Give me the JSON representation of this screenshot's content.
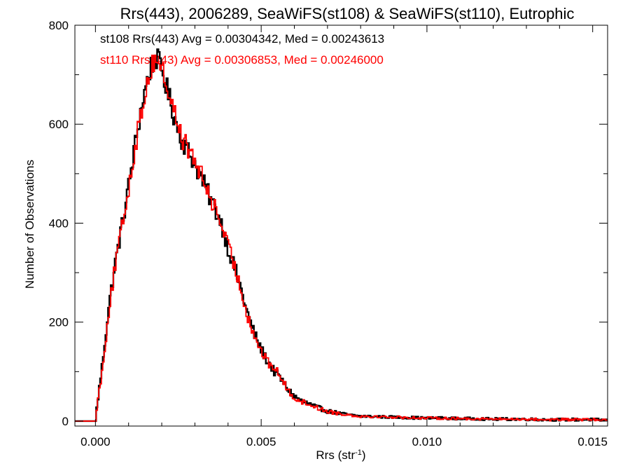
{
  "chart_data": {
    "type": "line",
    "title": "Rrs(443), 2006289, SeaWiFS(st108) & SeaWiFS(st110), Eutrophic",
    "xlabel": "Rrs (str",
    "xlabel_sup": "-1",
    "xlabel_close": ")",
    "ylabel": "Number of Observations",
    "xlim": [
      -0.00062,
      0.01545
    ],
    "ylim": [
      -10,
      800
    ],
    "x_ticks": [
      0.0,
      0.005,
      0.01,
      0.015
    ],
    "x_tick_labels": [
      "0.000",
      "0.005",
      "0.010",
      "0.015"
    ],
    "y_ticks": [
      0,
      200,
      400,
      600,
      800
    ],
    "y_tick_labels": [
      "0",
      "200",
      "400",
      "600",
      "800"
    ],
    "grid": false,
    "annotations": [
      {
        "text": "st108 Rrs(443) Avg = 0.00304342, Med = 0.00243613",
        "color": "#000000"
      },
      {
        "text": "st110 Rrs(443) Avg = 0.00306853, Med = 0.00246000",
        "color": "#ff0000"
      }
    ],
    "series": [
      {
        "color": "#000000",
        "x": [
          -0.0006,
          0.0,
          0.0002,
          0.0004,
          0.0006,
          0.0008,
          0.001,
          0.0012,
          0.0014,
          0.0016,
          0.0018,
          0.002,
          0.0022,
          0.0024,
          0.0026,
          0.0028,
          0.003,
          0.0032,
          0.0034,
          0.0036,
          0.0038,
          0.004,
          0.0042,
          0.0044,
          0.0046,
          0.0048,
          0.005,
          0.0052,
          0.0054,
          0.0056,
          0.0058,
          0.006,
          0.0062,
          0.0064,
          0.0066,
          0.0068,
          0.007,
          0.0072,
          0.0074,
          0.0076,
          0.0078,
          0.008,
          0.0085,
          0.009,
          0.0095,
          0.01,
          0.0105,
          0.011,
          0.0115,
          0.012,
          0.0125,
          0.013,
          0.0135,
          0.014,
          0.0145,
          0.015,
          0.01545
        ],
        "y": [
          0,
          5,
          110,
          230,
          320,
          395,
          475,
          560,
          640,
          700,
          740,
          710,
          660,
          610,
          570,
          545,
          520,
          490,
          460,
          430,
          400,
          350,
          310,
          265,
          215,
          175,
          145,
          120,
          100,
          85,
          65,
          50,
          42,
          36,
          30,
          25,
          20,
          18,
          15,
          13,
          11,
          10,
          9,
          8,
          7,
          6,
          6,
          5,
          5,
          4,
          4,
          4,
          3,
          3,
          3,
          3,
          2
        ]
      },
      {
        "color": "#ff0000",
        "x": [
          -0.0006,
          0.0,
          0.0002,
          0.0004,
          0.0006,
          0.0008,
          0.001,
          0.0012,
          0.0014,
          0.0016,
          0.0018,
          0.002,
          0.0022,
          0.0024,
          0.0026,
          0.0028,
          0.003,
          0.0032,
          0.0034,
          0.0036,
          0.0038,
          0.004,
          0.0042,
          0.0044,
          0.0046,
          0.0048,
          0.005,
          0.0052,
          0.0054,
          0.0056,
          0.0058,
          0.006,
          0.0062,
          0.0064,
          0.0066,
          0.0068,
          0.007,
          0.0072,
          0.0074,
          0.0076,
          0.0078,
          0.008,
          0.0085,
          0.009,
          0.0095,
          0.01,
          0.0105,
          0.011,
          0.0115,
          0.012,
          0.0125,
          0.013,
          0.0135,
          0.014,
          0.0145,
          0.015,
          0.01545
        ],
        "y": [
          0,
          8,
          100,
          220,
          315,
          390,
          470,
          555,
          630,
          695,
          735,
          715,
          665,
          620,
          575,
          548,
          525,
          495,
          462,
          432,
          398,
          352,
          312,
          262,
          212,
          172,
          142,
          118,
          108,
          88,
          62,
          48,
          40,
          35,
          30,
          24,
          20,
          17,
          15,
          13,
          11,
          10,
          9,
          8,
          7,
          6,
          6,
          5,
          5,
          4,
          4,
          4,
          3,
          3,
          3,
          3,
          2
        ]
      }
    ]
  }
}
